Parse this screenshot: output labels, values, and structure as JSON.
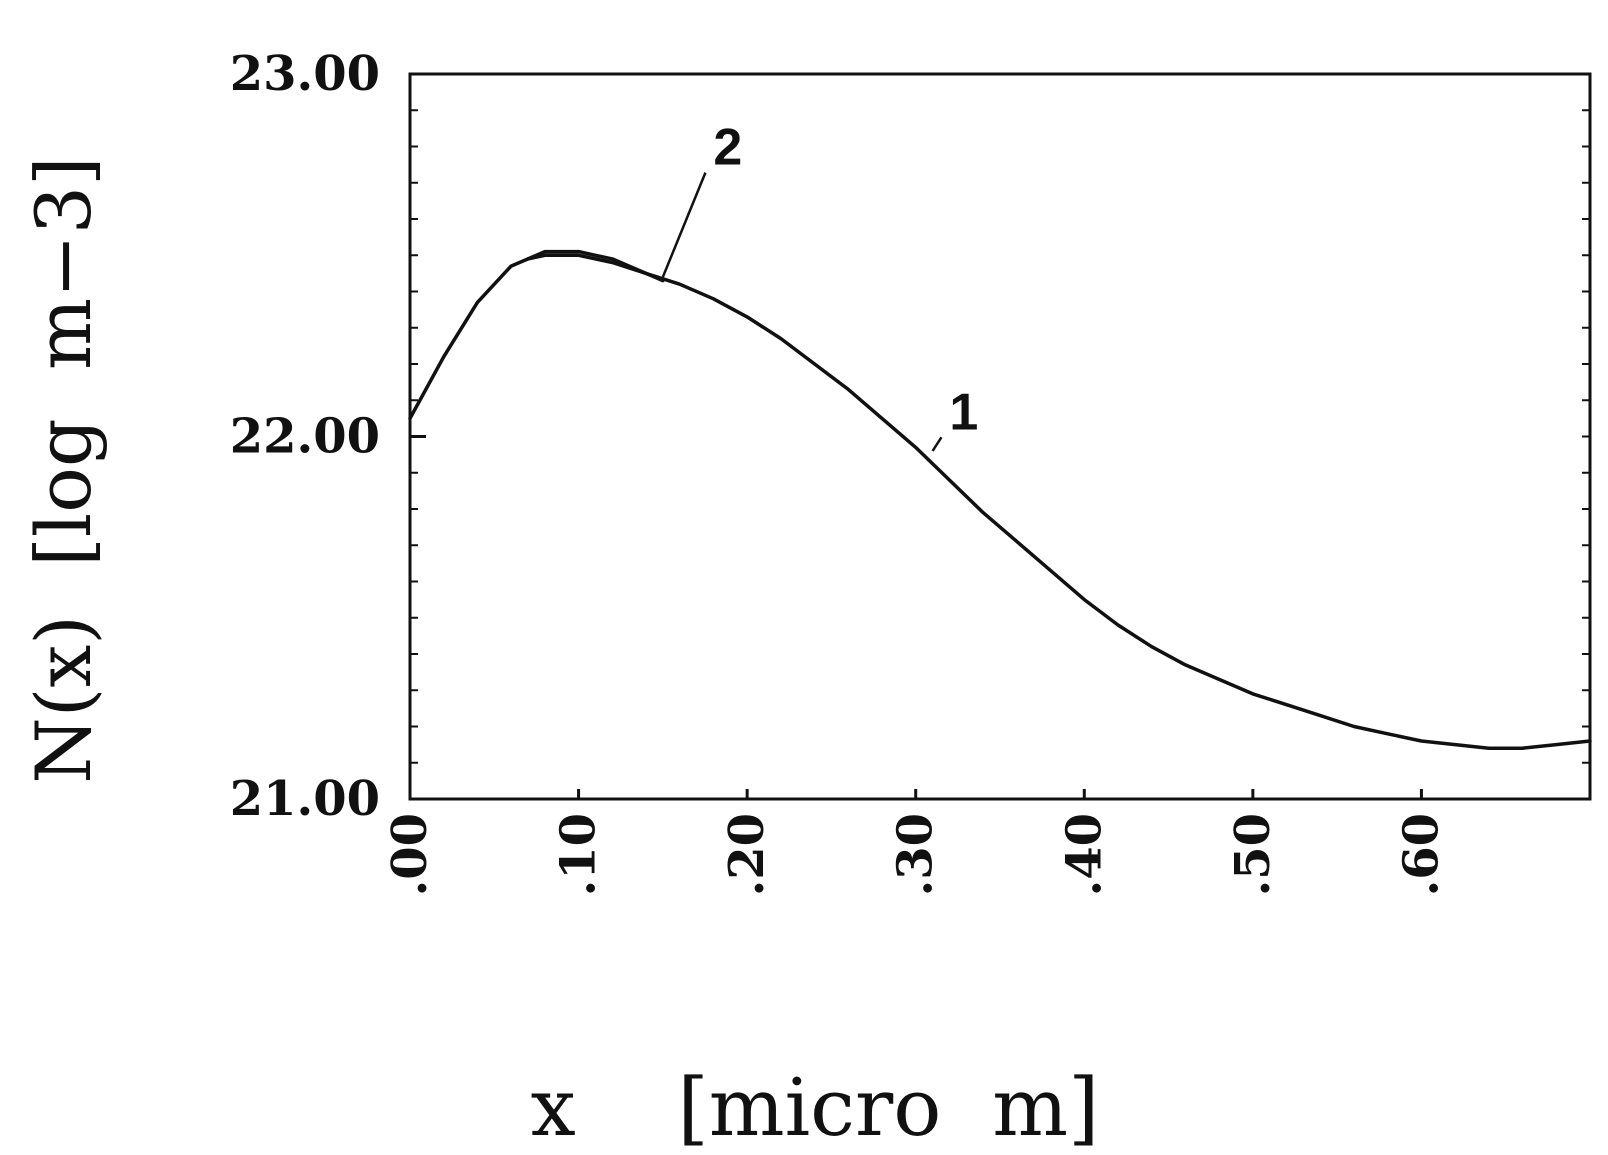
{
  "chart_data": {
    "type": "line",
    "title": "",
    "xlabel": "x    [micro  m]",
    "ylabel": "N(x)  [log  m−3]",
    "xlim": [
      0.0,
      0.7
    ],
    "ylim": [
      21.0,
      23.0
    ],
    "x_ticks": [
      {
        "value": 0.0,
        "label": ".00"
      },
      {
        "value": 0.1,
        "label": ".10"
      },
      {
        "value": 0.2,
        "label": ".20"
      },
      {
        "value": 0.3,
        "label": ".30"
      },
      {
        "value": 0.4,
        "label": ".40"
      },
      {
        "value": 0.5,
        "label": ".50"
      },
      {
        "value": 0.6,
        "label": ".60"
      }
    ],
    "y_ticks": [
      {
        "value": 21.0,
        "label": "21.00"
      },
      {
        "value": 22.0,
        "label": "22.00"
      },
      {
        "value": 23.0,
        "label": "23.00"
      }
    ],
    "grid": false,
    "series": [
      {
        "name": "1",
        "color": "#111111",
        "x": [
          0.0,
          0.02,
          0.04,
          0.06,
          0.07,
          0.08,
          0.09,
          0.1,
          0.12,
          0.14,
          0.16,
          0.18,
          0.2,
          0.22,
          0.24,
          0.26,
          0.28,
          0.3,
          0.32,
          0.34,
          0.36,
          0.38,
          0.4,
          0.42,
          0.44,
          0.46,
          0.48,
          0.5,
          0.52,
          0.54,
          0.56,
          0.58,
          0.6,
          0.62,
          0.64,
          0.66,
          0.68,
          0.7
        ],
        "y": [
          22.05,
          22.22,
          22.37,
          22.47,
          22.49,
          22.5,
          22.5,
          22.5,
          22.48,
          22.45,
          22.42,
          22.38,
          22.33,
          22.27,
          22.2,
          22.13,
          22.05,
          21.97,
          21.88,
          21.79,
          21.71,
          21.63,
          21.55,
          21.48,
          21.42,
          21.37,
          21.33,
          21.29,
          21.26,
          21.23,
          21.2,
          21.18,
          21.16,
          21.15,
          21.14,
          21.14,
          21.15,
          21.16
        ]
      },
      {
        "name": "2",
        "color": "#111111",
        "x": [
          0.07,
          0.08,
          0.09,
          0.1,
          0.11,
          0.12,
          0.13,
          0.14,
          0.15
        ],
        "y": [
          22.49,
          22.51,
          22.51,
          22.51,
          22.5,
          22.49,
          22.47,
          22.45,
          22.43
        ]
      }
    ],
    "annotations": [
      {
        "text": "1",
        "x": 0.32,
        "y": 22.02,
        "leader_to_x": 0.31,
        "leader_to_y": 21.96
      },
      {
        "text": "2",
        "x": 0.18,
        "y": 22.75,
        "leader_to_x": 0.15,
        "leader_to_y": 22.44
      }
    ]
  }
}
